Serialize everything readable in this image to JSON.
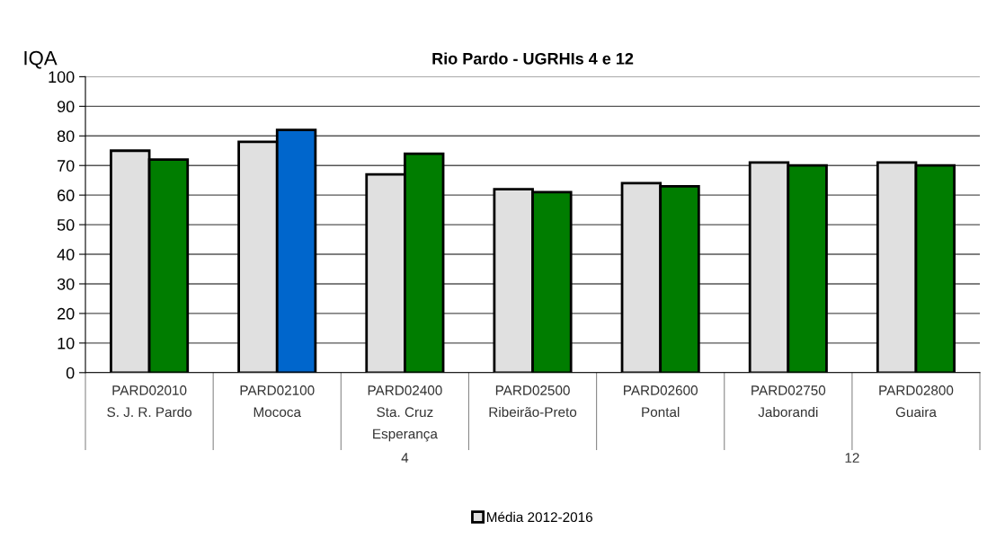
{
  "chart_data": {
    "type": "bar",
    "title": "Rio Pardo - UGRHIs 4 e 12",
    "ylabel": "IQA",
    "categories": [
      "PARD02010\nS. J. R. Pardo",
      "PARD02100\nMococa",
      "PARD02400\nSta. Cruz\nEsperança",
      "PARD02500\nRibeirão-Preto",
      "PARD02600\nPontal",
      "PARD02750\nJaborandi",
      "PARD02800\nGuaira"
    ],
    "series": [
      {
        "name": "Média 2012-2016",
        "color": "#e0e0e0",
        "values": [
          75,
          78,
          67,
          62,
          64,
          71,
          71
        ]
      },
      {
        "colors": [
          "#007d00",
          "#0066cc",
          "#007d00",
          "#007d00",
          "#007d00",
          "#007d00",
          "#007d00"
        ],
        "values": [
          72,
          82,
          74,
          61,
          63,
          70,
          70
        ]
      }
    ],
    "ylim": [
      0,
      100
    ],
    "yticks": [
      0,
      10,
      20,
      30,
      40,
      50,
      60,
      70,
      80,
      90,
      100
    ],
    "grid": "y",
    "legend": "bottom",
    "annotations": [
      "4",
      "12"
    ]
  }
}
